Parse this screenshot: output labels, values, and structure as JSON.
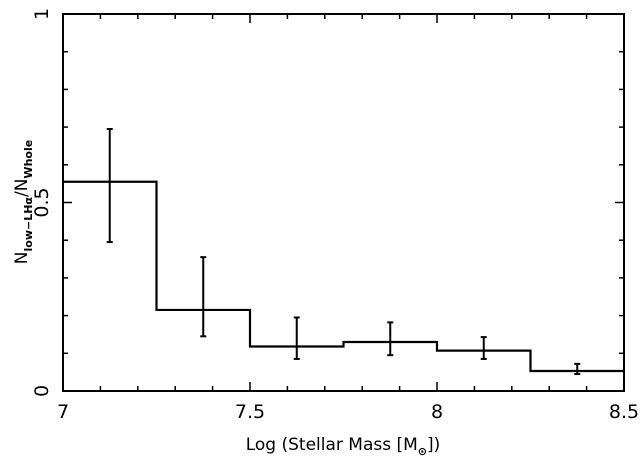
{
  "chart_data": {
    "type": "step",
    "xlabel": {
      "prefix": "Log (Stellar Mass [M",
      "subscript": "⊙",
      "suffix": "])"
    },
    "ylabel": {
      "n1": "N",
      "sub1": "low−LHα",
      "slash": "/N",
      "sub2": "Whole"
    },
    "xlim": [
      7,
      8.5
    ],
    "ylim": [
      0,
      1
    ],
    "x_ticks": [
      7,
      7.5,
      8,
      8.5
    ],
    "x_tick_labels": [
      "7",
      "7.5",
      "8",
      "8.5"
    ],
    "y_ticks": [
      0,
      0.5,
      1
    ],
    "y_tick_labels": [
      "0",
      "0.5",
      "1"
    ],
    "bin_edges": [
      7,
      7.25,
      7.5,
      7.75,
      8,
      8.25,
      8.5
    ],
    "values": [
      0.555,
      0.215,
      0.118,
      0.13,
      0.107,
      0.053
    ],
    "error_bars": {
      "x": [
        7.125,
        7.375,
        7.625,
        7.875,
        8.125,
        8.375
      ],
      "center": [
        0.555,
        0.25,
        0.14,
        0.135,
        0.113,
        0.06
      ],
      "lower": [
        0.395,
        0.145,
        0.085,
        0.095,
        0.085,
        0.045
      ],
      "upper": [
        0.695,
        0.355,
        0.195,
        0.182,
        0.143,
        0.072
      ]
    },
    "grid": false,
    "legend": "none"
  }
}
